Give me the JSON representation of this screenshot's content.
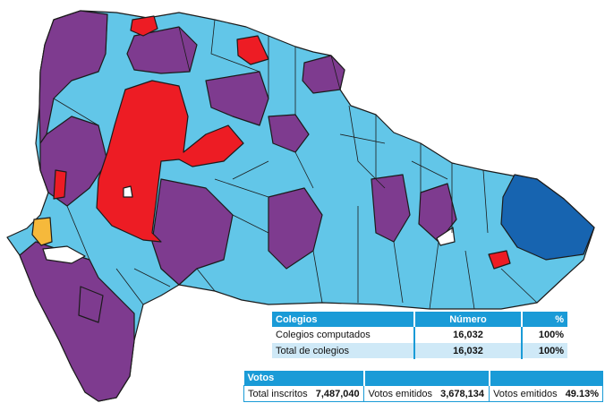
{
  "colors": {
    "purple": "#7e3b8f",
    "light_blue": "#62c6e8",
    "red": "#ed1c24",
    "dark_blue": "#1764b0",
    "yellow": "#f6b93b",
    "panel_header": "#1a9bd7",
    "panel_row_alt": "#cfe9f7"
  },
  "colegios_table": {
    "headers": {
      "colegios": "Colegios",
      "numero": "Número",
      "pct": "%"
    },
    "rows": [
      {
        "label": "Colegios computados",
        "numero": "16,032",
        "pct": "100%"
      },
      {
        "label": "Total de colegios",
        "numero": "16,032",
        "pct": "100%"
      }
    ]
  },
  "votos_table": {
    "header": "Votos",
    "total_inscritos_label": "Total inscritos",
    "total_inscritos_value": "7,487,040",
    "votos_emitidos_label": "Votos emitidos",
    "votos_emitidos_value": "3,678,134",
    "votos_emitidos_pct_label": "Votos emitidos",
    "votos_emitidos_pct_value": "49.13%"
  }
}
